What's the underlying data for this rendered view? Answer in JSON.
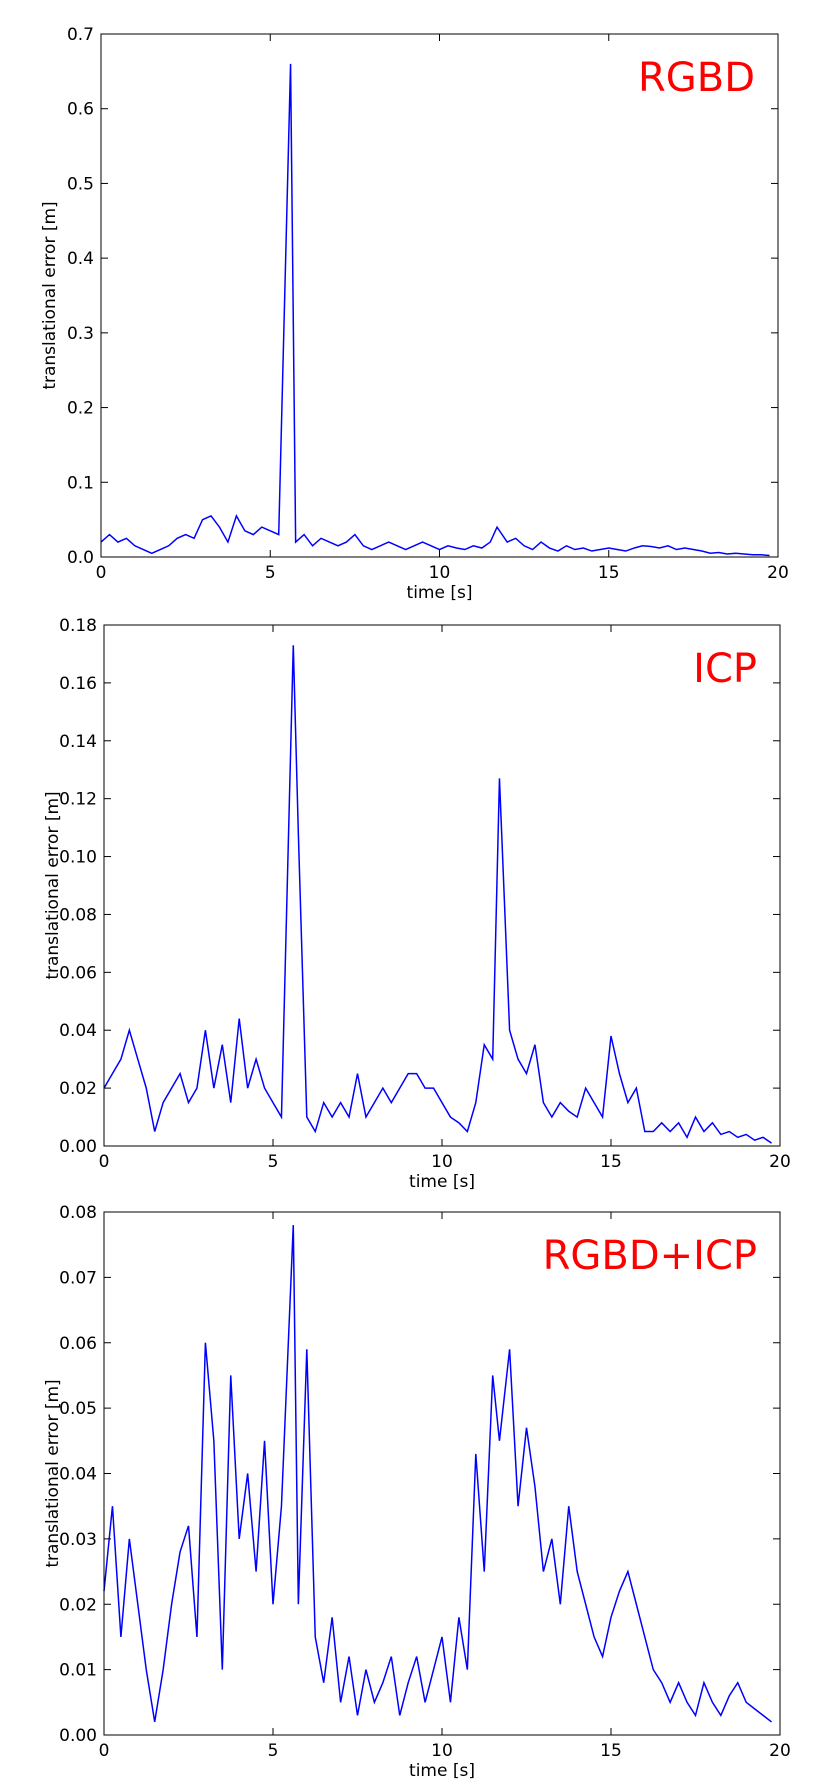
{
  "chart_data": [
    {
      "type": "line",
      "annotation": "RGBD",
      "xlabel": "time [s]",
      "ylabel": "translational error [m]",
      "xlim": [
        0,
        20
      ],
      "ylim": [
        0,
        0.7
      ],
      "xticks": [
        0,
        5,
        10,
        15,
        20
      ],
      "yticks": [
        {
          "value": 0,
          "label": "0.0"
        },
        {
          "value": 0.1,
          "label": "0.1"
        },
        {
          "value": 0.2,
          "label": "0.2"
        },
        {
          "value": 0.3,
          "label": "0.3"
        },
        {
          "value": 0.4,
          "label": "0.4"
        },
        {
          "value": 0.5,
          "label": "0.5"
        },
        {
          "value": 0.6,
          "label": "0.6"
        },
        {
          "value": 0.7,
          "label": "0.7"
        }
      ],
      "x": [
        0,
        0.25,
        0.5,
        0.75,
        1,
        1.25,
        1.5,
        1.75,
        2,
        2.25,
        2.5,
        2.75,
        3,
        3.25,
        3.5,
        3.75,
        4,
        4.25,
        4.5,
        4.75,
        5,
        5.25,
        5.6,
        5.75,
        6,
        6.25,
        6.5,
        6.75,
        7,
        7.25,
        7.5,
        7.75,
        8,
        8.25,
        8.5,
        8.75,
        9,
        9.25,
        9.5,
        9.75,
        10,
        10.25,
        10.5,
        10.75,
        11,
        11.25,
        11.5,
        11.7,
        12,
        12.25,
        12.5,
        12.75,
        13,
        13.25,
        13.5,
        13.75,
        14,
        14.25,
        14.5,
        14.75,
        15,
        15.25,
        15.5,
        15.75,
        16,
        16.25,
        16.5,
        16.75,
        17,
        17.25,
        17.5,
        17.75,
        18,
        18.25,
        18.5,
        18.75,
        19,
        19.25,
        19.5,
        19.75
      ],
      "series": [
        {
          "color": "#0000ff",
          "values": [
            0.02,
            0.03,
            0.02,
            0.025,
            0.015,
            0.01,
            0.005,
            0.01,
            0.015,
            0.025,
            0.03,
            0.025,
            0.05,
            0.055,
            0.04,
            0.02,
            0.055,
            0.035,
            0.03,
            0.04,
            0.035,
            0.03,
            0.66,
            0.02,
            0.03,
            0.015,
            0.025,
            0.02,
            0.015,
            0.02,
            0.03,
            0.015,
            0.01,
            0.015,
            0.02,
            0.015,
            0.01,
            0.015,
            0.02,
            0.015,
            0.01,
            0.015,
            0.012,
            0.01,
            0.015,
            0.012,
            0.02,
            0.04,
            0.02,
            0.025,
            0.015,
            0.01,
            0.02,
            0.012,
            0.008,
            0.015,
            0.01,
            0.012,
            0.008,
            0.01,
            0.012,
            0.01,
            0.008,
            0.012,
            0.015,
            0.014,
            0.012,
            0.015,
            0.01,
            0.012,
            0.01,
            0.008,
            0.005,
            0.006,
            0.004,
            0.005,
            0.004,
            0.003,
            0.003,
            0.002
          ]
        }
      ]
    },
    {
      "type": "line",
      "annotation": "ICP",
      "xlabel": "time [s]",
      "ylabel": "translational error [m]",
      "xlim": [
        0,
        20
      ],
      "ylim": [
        0,
        0.18
      ],
      "xticks": [
        0,
        5,
        10,
        15,
        20
      ],
      "yticks": [
        {
          "value": 0,
          "label": "0.00"
        },
        {
          "value": 0.02,
          "label": "0.02"
        },
        {
          "value": 0.04,
          "label": "0.04"
        },
        {
          "value": 0.06,
          "label": "0.06"
        },
        {
          "value": 0.08,
          "label": "0.08"
        },
        {
          "value": 0.1,
          "label": "0.10"
        },
        {
          "value": 0.12,
          "label": "0.12"
        },
        {
          "value": 0.14,
          "label": "0.14"
        },
        {
          "value": 0.16,
          "label": "0.16"
        },
        {
          "value": 0.18,
          "label": "0.18"
        }
      ],
      "x": [
        0,
        0.25,
        0.5,
        0.75,
        1,
        1.25,
        1.5,
        1.75,
        2,
        2.25,
        2.5,
        2.75,
        3,
        3.25,
        3.5,
        3.75,
        4,
        4.25,
        4.5,
        4.75,
        5,
        5.25,
        5.6,
        5.75,
        6,
        6.25,
        6.5,
        6.75,
        7,
        7.25,
        7.5,
        7.75,
        8,
        8.25,
        8.5,
        8.75,
        9,
        9.25,
        9.5,
        9.75,
        10,
        10.25,
        10.5,
        10.75,
        11,
        11.25,
        11.5,
        11.7,
        12,
        12.25,
        12.5,
        12.75,
        13,
        13.25,
        13.5,
        13.75,
        14,
        14.25,
        14.5,
        14.75,
        15,
        15.25,
        15.5,
        15.75,
        16,
        16.25,
        16.5,
        16.75,
        17,
        17.25,
        17.5,
        17.75,
        18,
        18.25,
        18.5,
        18.75,
        19,
        19.25,
        19.5,
        19.75
      ],
      "series": [
        {
          "color": "#0000ff",
          "values": [
            0.02,
            0.025,
            0.03,
            0.04,
            0.03,
            0.02,
            0.005,
            0.015,
            0.02,
            0.025,
            0.015,
            0.02,
            0.04,
            0.02,
            0.035,
            0.015,
            0.044,
            0.02,
            0.03,
            0.02,
            0.015,
            0.01,
            0.173,
            0.108,
            0.01,
            0.005,
            0.015,
            0.01,
            0.015,
            0.01,
            0.025,
            0.01,
            0.015,
            0.02,
            0.015,
            0.02,
            0.025,
            0.025,
            0.02,
            0.02,
            0.015,
            0.01,
            0.008,
            0.005,
            0.015,
            0.035,
            0.03,
            0.127,
            0.04,
            0.03,
            0.025,
            0.035,
            0.015,
            0.01,
            0.015,
            0.012,
            0.01,
            0.02,
            0.015,
            0.01,
            0.038,
            0.025,
            0.015,
            0.02,
            0.005,
            0.005,
            0.008,
            0.005,
            0.008,
            0.003,
            0.01,
            0.005,
            0.008,
            0.004,
            0.005,
            0.003,
            0.004,
            0.002,
            0.003,
            0.001
          ]
        }
      ]
    },
    {
      "type": "line",
      "annotation": "RGBD+ICP",
      "xlabel": "time [s]",
      "ylabel": "translational error [m]",
      "xlim": [
        0,
        20
      ],
      "ylim": [
        0,
        0.08
      ],
      "xticks": [
        0,
        5,
        10,
        15,
        20
      ],
      "yticks": [
        {
          "value": 0,
          "label": "0.00"
        },
        {
          "value": 0.01,
          "label": "0.01"
        },
        {
          "value": 0.02,
          "label": "0.02"
        },
        {
          "value": 0.03,
          "label": "0.03"
        },
        {
          "value": 0.04,
          "label": "0.04"
        },
        {
          "value": 0.05,
          "label": "0.05"
        },
        {
          "value": 0.06,
          "label": "0.06"
        },
        {
          "value": 0.07,
          "label": "0.07"
        },
        {
          "value": 0.08,
          "label": "0.08"
        }
      ],
      "x": [
        0,
        0.25,
        0.5,
        0.75,
        1,
        1.25,
        1.5,
        1.75,
        2,
        2.25,
        2.5,
        2.75,
        3,
        3.25,
        3.5,
        3.75,
        4,
        4.25,
        4.5,
        4.75,
        5,
        5.25,
        5.6,
        5.75,
        6,
        6.25,
        6.5,
        6.75,
        7,
        7.25,
        7.5,
        7.75,
        8,
        8.25,
        8.5,
        8.75,
        9,
        9.25,
        9.5,
        9.75,
        10,
        10.25,
        10.5,
        10.75,
        11,
        11.25,
        11.5,
        11.7,
        12,
        12.25,
        12.5,
        12.75,
        13,
        13.25,
        13.5,
        13.75,
        14,
        14.25,
        14.5,
        14.75,
        15,
        15.25,
        15.5,
        15.75,
        16,
        16.25,
        16.5,
        16.75,
        17,
        17.25,
        17.5,
        17.75,
        18,
        18.25,
        18.5,
        18.75,
        19,
        19.25,
        19.5,
        19.75
      ],
      "series": [
        {
          "color": "#0000ff",
          "values": [
            0.022,
            0.035,
            0.015,
            0.03,
            0.02,
            0.01,
            0.002,
            0.01,
            0.02,
            0.028,
            0.032,
            0.015,
            0.06,
            0.045,
            0.01,
            0.055,
            0.03,
            0.04,
            0.025,
            0.045,
            0.02,
            0.035,
            0.078,
            0.02,
            0.059,
            0.015,
            0.008,
            0.018,
            0.005,
            0.012,
            0.003,
            0.01,
            0.005,
            0.008,
            0.012,
            0.003,
            0.008,
            0.012,
            0.005,
            0.01,
            0.015,
            0.005,
            0.018,
            0.01,
            0.043,
            0.025,
            0.055,
            0.045,
            0.059,
            0.035,
            0.047,
            0.038,
            0.025,
            0.03,
            0.02,
            0.035,
            0.025,
            0.02,
            0.015,
            0.012,
            0.018,
            0.022,
            0.025,
            0.02,
            0.015,
            0.01,
            0.008,
            0.005,
            0.008,
            0.005,
            0.003,
            0.008,
            0.005,
            0.003,
            0.006,
            0.008,
            0.005,
            0.004,
            0.003,
            0.002
          ]
        }
      ]
    }
  ]
}
